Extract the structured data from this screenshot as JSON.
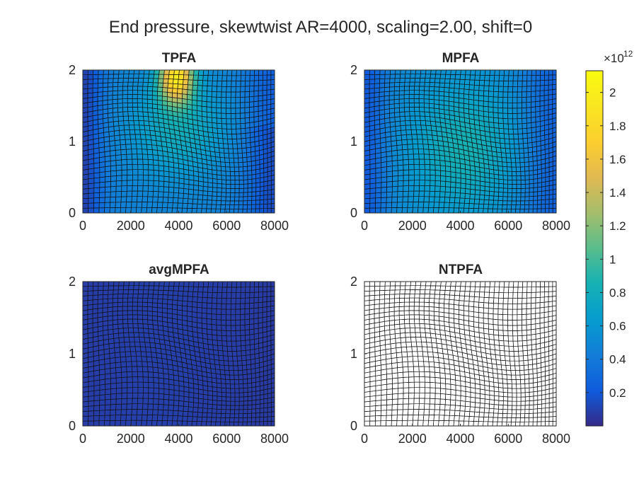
{
  "figure": {
    "title": "End pressure, skewtwist AR=4000, scaling=2.00, shift=0"
  },
  "chart_data": [
    {
      "type": "heatmap",
      "title": "TPFA",
      "xlim": [
        0,
        8000
      ],
      "ylim": [
        0,
        2
      ],
      "x_ticks": [
        "0",
        "2000",
        "4000",
        "6000",
        "8000"
      ],
      "y_ticks": [
        "0",
        "1",
        "2"
      ],
      "grid": "distorted quadrilateral mesh, 40 x 30 cells",
      "peak_value": 2100000000000.0,
      "peak_location": [
        3900,
        1.9
      ],
      "typical_value": 700000000000.0
    },
    {
      "type": "heatmap",
      "title": "MPFA",
      "xlim": [
        0,
        8000
      ],
      "ylim": [
        0,
        2
      ],
      "x_ticks": [
        "0",
        "2000",
        "4000",
        "6000",
        "8000"
      ],
      "y_ticks": [
        "0",
        "1",
        "2"
      ],
      "grid": "distorted quadrilateral mesh, 40 x 30 cells",
      "peak_value": 850000000000.0,
      "typical_value": 550000000000.0
    },
    {
      "type": "heatmap",
      "title": "avgMPFA",
      "xlim": [
        0,
        8000
      ],
      "ylim": [
        0,
        2
      ],
      "x_ticks": [
        "0",
        "2000",
        "4000",
        "6000",
        "8000"
      ],
      "y_ticks": [
        "0",
        "1",
        "2"
      ],
      "grid": "distorted quadrilateral mesh, 40 x 30 cells",
      "peak_value": 100000000000.0,
      "typical_value": 80000000000.0
    },
    {
      "type": "heatmap",
      "title": "NTPFA",
      "xlim": [
        0,
        8000
      ],
      "ylim": [
        0,
        2
      ],
      "x_ticks": [
        "0",
        "2000",
        "4000",
        "6000",
        "8000"
      ],
      "y_ticks": [
        "0",
        "1",
        "2"
      ],
      "grid": "distorted quadrilateral mesh, 40 x 30 cells, no fill",
      "peak_value": null
    }
  ],
  "colorbar": {
    "exponent_label": "×10",
    "exponent": "12",
    "range": [
      0.0,
      2.13
    ],
    "ticks": [
      "0.2",
      "0.4",
      "0.6",
      "0.8",
      "1",
      "1.2",
      "1.4",
      "1.6",
      "1.8",
      "2"
    ],
    "tick_values": [
      0.2,
      0.4,
      0.6,
      0.8,
      1.0,
      1.2,
      1.4,
      1.6,
      1.8,
      2.0
    ],
    "colormap": "parula"
  }
}
